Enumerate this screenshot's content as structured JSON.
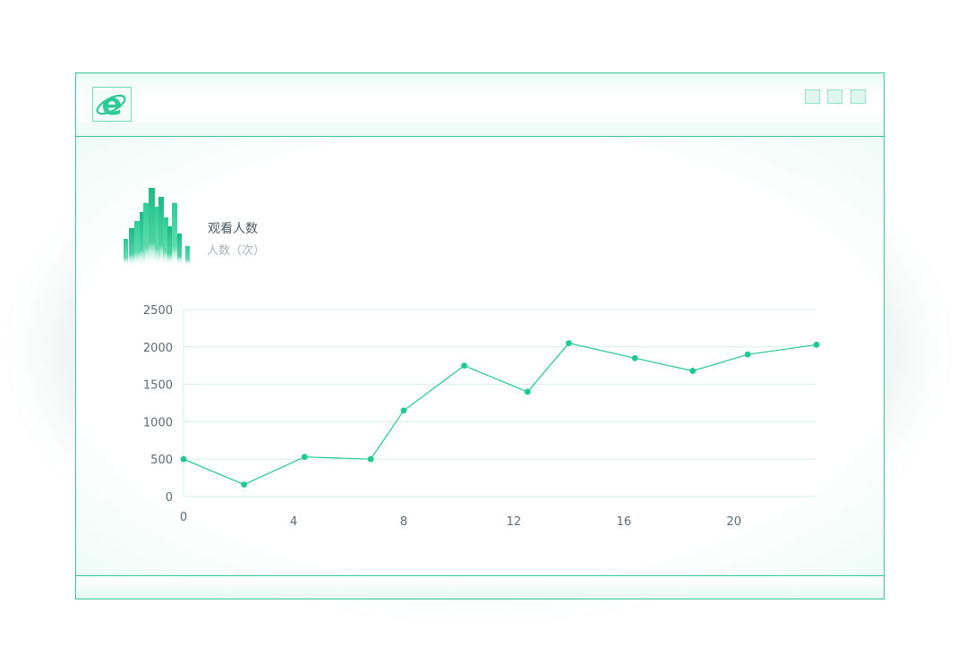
{
  "window": {
    "icon": "internet-explorer-icon",
    "controls": [
      "minimize-icon",
      "maximize-icon",
      "close-icon"
    ],
    "accent_color": "#35c79a"
  },
  "header": {
    "title": "观看人数",
    "subtitle": "人数（次）",
    "decoration_icon": "bar-city-icon"
  },
  "chart_data": {
    "type": "line",
    "title": "观看人数",
    "ylabel": "人数（次）",
    "xlabel": "",
    "x": [
      0,
      2.2,
      4.4,
      6.8,
      8.0,
      10.2,
      12.5,
      14.0,
      16.4,
      18.5,
      20.5,
      23.0
    ],
    "values": [
      500,
      160,
      530,
      500,
      1150,
      1750,
      1400,
      2050,
      1850,
      1680,
      1900,
      2030
    ],
    "xlim": [
      0,
      23
    ],
    "ylim": [
      0,
      2500
    ],
    "x_ticks": [
      "0",
      "4",
      "8",
      "12",
      "16",
      "20"
    ],
    "y_ticks": [
      "0",
      "500",
      "1000",
      "1500",
      "2000",
      "2500"
    ],
    "grid": true,
    "line_color": "#1ec992"
  }
}
